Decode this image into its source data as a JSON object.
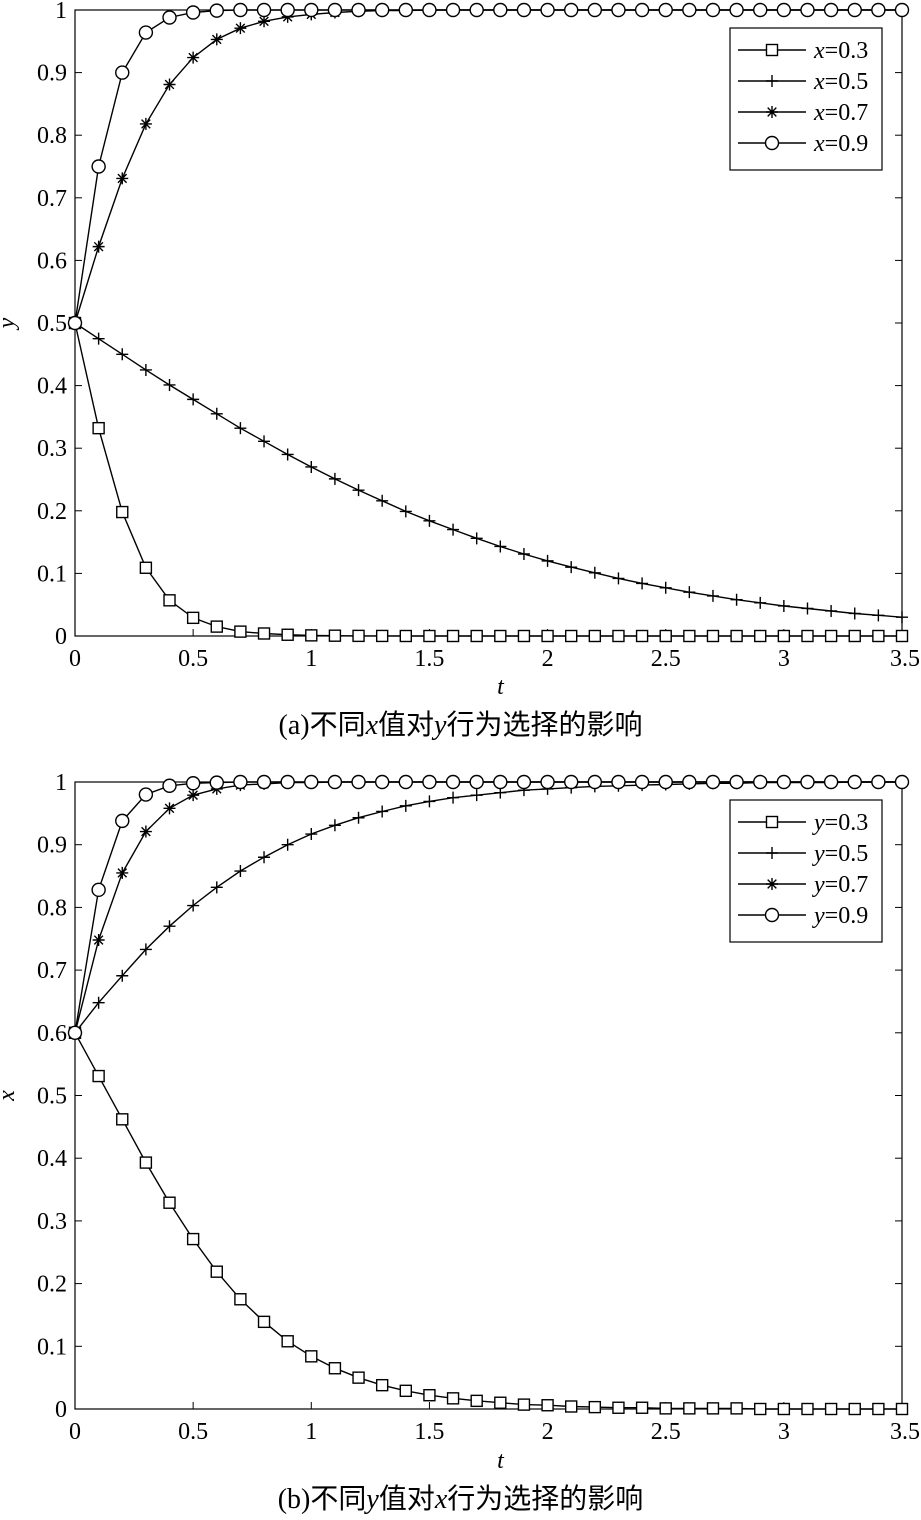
{
  "chart_data": [
    {
      "type": "line",
      "caption": {
        "prefix": "(a)",
        "p1": "不同",
        "v1": "x",
        "p2": "值对",
        "v2": "y",
        "p3": "行为选择的影响"
      },
      "xlabel": "t",
      "ylabel": "y",
      "xlim": [
        0,
        3.5
      ],
      "ylim": [
        0,
        1
      ],
      "xticks": [
        "0",
        "0.5",
        "1",
        "1.5",
        "2",
        "2.5",
        "3",
        "3.5"
      ],
      "yticks": [
        "0",
        "0.1",
        "0.2",
        "0.3",
        "0.4",
        "0.5",
        "0.6",
        "0.7",
        "0.8",
        "0.9",
        "1"
      ],
      "legend_position": "top-right",
      "x": [
        0,
        0.1,
        0.2,
        0.3,
        0.4,
        0.5,
        0.6,
        0.7,
        0.8,
        0.9,
        1.0,
        1.1,
        1.2,
        1.3,
        1.4,
        1.5,
        1.6,
        1.7,
        1.8,
        1.9,
        2.0,
        2.1,
        2.2,
        2.3,
        2.4,
        2.5,
        2.6,
        2.7,
        2.8,
        2.9,
        3.0,
        3.1,
        3.2,
        3.3,
        3.4,
        3.5
      ],
      "series": [
        {
          "name_var": "x",
          "name_val": "=0.3",
          "marker": "square",
          "values": [
            0.5,
            0.332,
            0.198,
            0.109,
            0.057,
            0.029,
            0.015,
            0.007,
            0.004,
            0.002,
            0.001,
            0.0005,
            0.0002,
            0.0001,
            0,
            0,
            0,
            0,
            0,
            0,
            0,
            0,
            0,
            0,
            0,
            0,
            0,
            0,
            0,
            0,
            0,
            0,
            0,
            0,
            0,
            0
          ]
        },
        {
          "name_var": "x",
          "name_val": "=0.5",
          "marker": "plus",
          "values": [
            0.5,
            0.475,
            0.45,
            0.425,
            0.401,
            0.378,
            0.355,
            0.332,
            0.311,
            0.29,
            0.27,
            0.251,
            0.233,
            0.216,
            0.199,
            0.184,
            0.17,
            0.156,
            0.143,
            0.131,
            0.12,
            0.11,
            0.101,
            0.092,
            0.084,
            0.077,
            0.07,
            0.064,
            0.058,
            0.053,
            0.048,
            0.044,
            0.04,
            0.036,
            0.033,
            0.03
          ]
        },
        {
          "name_var": "x",
          "name_val": "=0.7",
          "marker": "asterisk",
          "values": [
            0.5,
            0.622,
            0.731,
            0.818,
            0.881,
            0.924,
            0.953,
            0.971,
            0.982,
            0.989,
            0.993,
            0.996,
            0.998,
            0.999,
            0.999,
            1,
            1,
            1,
            1,
            1,
            1,
            1,
            1,
            1,
            1,
            1,
            1,
            1,
            1,
            1,
            1,
            1,
            1,
            1,
            1,
            1
          ]
        },
        {
          "name_var": "x",
          "name_val": "=0.9",
          "marker": "circle",
          "values": [
            0.5,
            0.75,
            0.9,
            0.964,
            0.988,
            0.996,
            0.999,
            1,
            1,
            1,
            1,
            1,
            1,
            1,
            1,
            1,
            1,
            1,
            1,
            1,
            1,
            1,
            1,
            1,
            1,
            1,
            1,
            1,
            1,
            1,
            1,
            1,
            1,
            1,
            1,
            1
          ]
        }
      ]
    },
    {
      "type": "line",
      "caption": {
        "prefix": "(b)",
        "p1": "不同",
        "v1": "y",
        "p2": "值对",
        "v2": "x",
        "p3": "行为选择的影响"
      },
      "xlabel": "t",
      "ylabel": "x",
      "xlim": [
        0,
        3.5
      ],
      "ylim": [
        0,
        1
      ],
      "xticks": [
        "0",
        "0.5",
        "1",
        "1.5",
        "2",
        "2.5",
        "3",
        "3.5"
      ],
      "yticks": [
        "0",
        "0.1",
        "0.2",
        "0.3",
        "0.4",
        "0.5",
        "0.6",
        "0.7",
        "0.8",
        "0.9",
        "1"
      ],
      "legend_position": "top-right",
      "x": [
        0,
        0.1,
        0.2,
        0.3,
        0.4,
        0.5,
        0.6,
        0.7,
        0.8,
        0.9,
        1.0,
        1.1,
        1.2,
        1.3,
        1.4,
        1.5,
        1.6,
        1.7,
        1.8,
        1.9,
        2.0,
        2.1,
        2.2,
        2.3,
        2.4,
        2.5,
        2.6,
        2.7,
        2.8,
        2.9,
        3.0,
        3.1,
        3.2,
        3.3,
        3.4,
        3.5
      ],
      "series": [
        {
          "name_var": "y",
          "name_val": "=0.3",
          "marker": "square",
          "values": [
            0.6,
            0.531,
            0.462,
            0.393,
            0.329,
            0.271,
            0.219,
            0.175,
            0.139,
            0.108,
            0.084,
            0.065,
            0.05,
            0.038,
            0.029,
            0.022,
            0.017,
            0.013,
            0.01,
            0.007,
            0.006,
            0.004,
            0.003,
            0.002,
            0.002,
            0.001,
            0.001,
            0.001,
            0.001,
            0,
            0,
            0,
            0,
            0,
            0,
            0
          ]
        },
        {
          "name_var": "y",
          "name_val": "=0.5",
          "marker": "plus",
          "values": [
            0.6,
            0.648,
            0.691,
            0.733,
            0.77,
            0.803,
            0.832,
            0.858,
            0.88,
            0.9,
            0.917,
            0.931,
            0.943,
            0.953,
            0.962,
            0.969,
            0.975,
            0.979,
            0.983,
            0.987,
            0.989,
            0.991,
            0.993,
            0.994,
            0.995,
            0.996,
            0.997,
            0.998,
            0.998,
            0.999,
            0.999,
            0.999,
            0.999,
            1,
            1,
            1
          ]
        },
        {
          "name_var": "y",
          "name_val": "=0.7",
          "marker": "asterisk",
          "values": [
            0.6,
            0.748,
            0.855,
            0.921,
            0.958,
            0.979,
            0.989,
            0.995,
            0.997,
            0.999,
            0.999,
            1,
            1,
            1,
            1,
            1,
            1,
            1,
            1,
            1,
            1,
            1,
            1,
            1,
            1,
            1,
            1,
            1,
            1,
            1,
            1,
            1,
            1,
            1,
            1,
            1
          ]
        },
        {
          "name_var": "y",
          "name_val": "=0.9",
          "marker": "circle",
          "values": [
            0.6,
            0.828,
            0.938,
            0.98,
            0.994,
            0.998,
            0.999,
            1,
            1,
            1,
            1,
            1,
            1,
            1,
            1,
            1,
            1,
            1,
            1,
            1,
            1,
            1,
            1,
            1,
            1,
            1,
            1,
            1,
            1,
            1,
            1,
            1,
            1,
            1,
            1,
            1
          ]
        }
      ]
    }
  ]
}
